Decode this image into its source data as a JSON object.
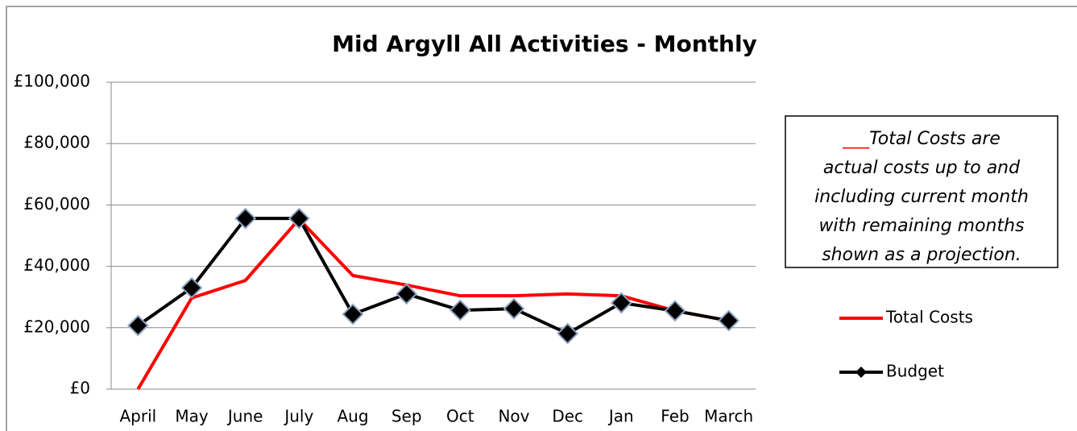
{
  "chart_data": {
    "type": "line",
    "title": "Mid Argyll All Activities - Monthly",
    "categories": [
      "April",
      "May",
      "June",
      "July",
      "Aug",
      "Sep",
      "Oct",
      "Nov",
      "Dec",
      "Jan",
      "Feb",
      "March"
    ],
    "series": [
      {
        "name": "Total Costs",
        "color": "#ff0000",
        "marker": "none",
        "values": [
          0,
          29700,
          35400,
          55400,
          37000,
          33900,
          30400,
          30400,
          31000,
          30400,
          25500,
          22300
        ]
      },
      {
        "name": "Budget",
        "color": "#000000",
        "marker": "diamond",
        "values": [
          20700,
          33000,
          55600,
          55600,
          24400,
          31000,
          25700,
          26200,
          18100,
          28100,
          25500,
          22300
        ]
      }
    ],
    "ylim": [
      0,
      100000
    ],
    "yticks": [
      {
        "value": 0,
        "label": "£0"
      },
      {
        "value": 20000,
        "label": "£20,000"
      },
      {
        "value": 40000,
        "label": "£40,000"
      },
      {
        "value": 60000,
        "label": "£60,000"
      },
      {
        "value": 80000,
        "label": "£80,000"
      },
      {
        "value": 100000,
        "label": "£100,000"
      }
    ],
    "grid": true,
    "legend": "right",
    "annotation": {
      "marker": "___",
      "lines": [
        "Total Costs are",
        "actual costs up to and",
        "including current month",
        "with remaining months",
        "shown as a projection."
      ]
    }
  }
}
